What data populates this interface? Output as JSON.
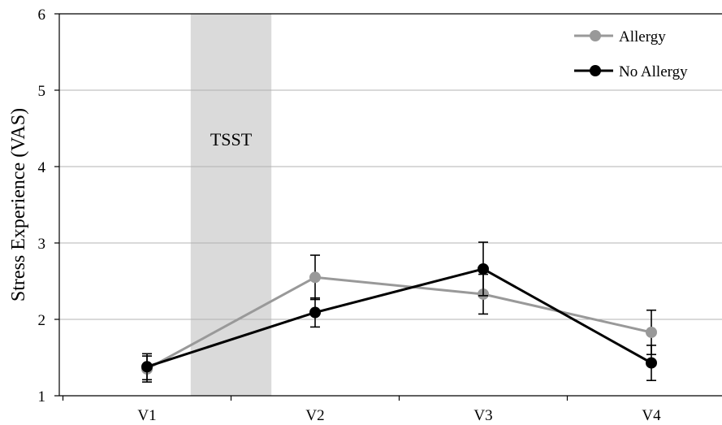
{
  "chart_data": {
    "type": "line",
    "title": "",
    "xlabel": "",
    "ylabel": "Stress Experience (VAS)",
    "categories": [
      "V1",
      "V2",
      "V3",
      "V4"
    ],
    "ylim": [
      1,
      6
    ],
    "yticks": [
      1,
      2,
      3,
      4,
      5,
      6
    ],
    "grid": "horizontal",
    "legend_position": "top-right",
    "shaded_region": {
      "label": "TSST",
      "from_category": "V1",
      "to_category": "V2",
      "start_fraction": 0.26,
      "end_fraction": 0.74,
      "color": "#dadada"
    },
    "series": [
      {
        "name": "Allergy",
        "color": "#999999",
        "values": [
          1.35,
          2.55,
          2.33,
          1.83
        ],
        "error": [
          0.17,
          0.29,
          0.26,
          0.29
        ]
      },
      {
        "name": "No Allergy",
        "color": "#000000",
        "values": [
          1.38,
          2.09,
          2.66,
          1.43
        ],
        "error": [
          0.17,
          0.19,
          0.35,
          0.23
        ]
      }
    ]
  }
}
